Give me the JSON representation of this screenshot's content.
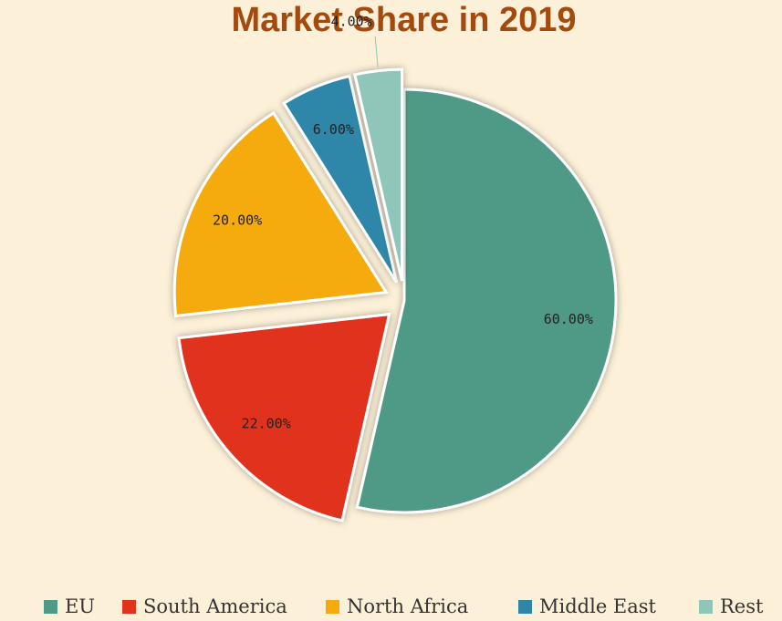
{
  "chart_data": {
    "type": "pie",
    "title": "Market Share in 2019",
    "categories": [
      "EU",
      "South America",
      "North Africa",
      "Middle East",
      "Rest"
    ],
    "values": [
      60,
      22,
      20,
      6,
      4
    ],
    "labels": [
      "60.00%",
      "22.00%",
      "20.00%",
      "6.00%",
      "4.00%"
    ],
    "colors": [
      "#4f9a86",
      "#e0331a",
      "#f5ab0b",
      "#2e86a8",
      "#90c6b9"
    ],
    "exploded": [
      false,
      true,
      true,
      true,
      true
    ],
    "legend_position": "bottom"
  }
}
